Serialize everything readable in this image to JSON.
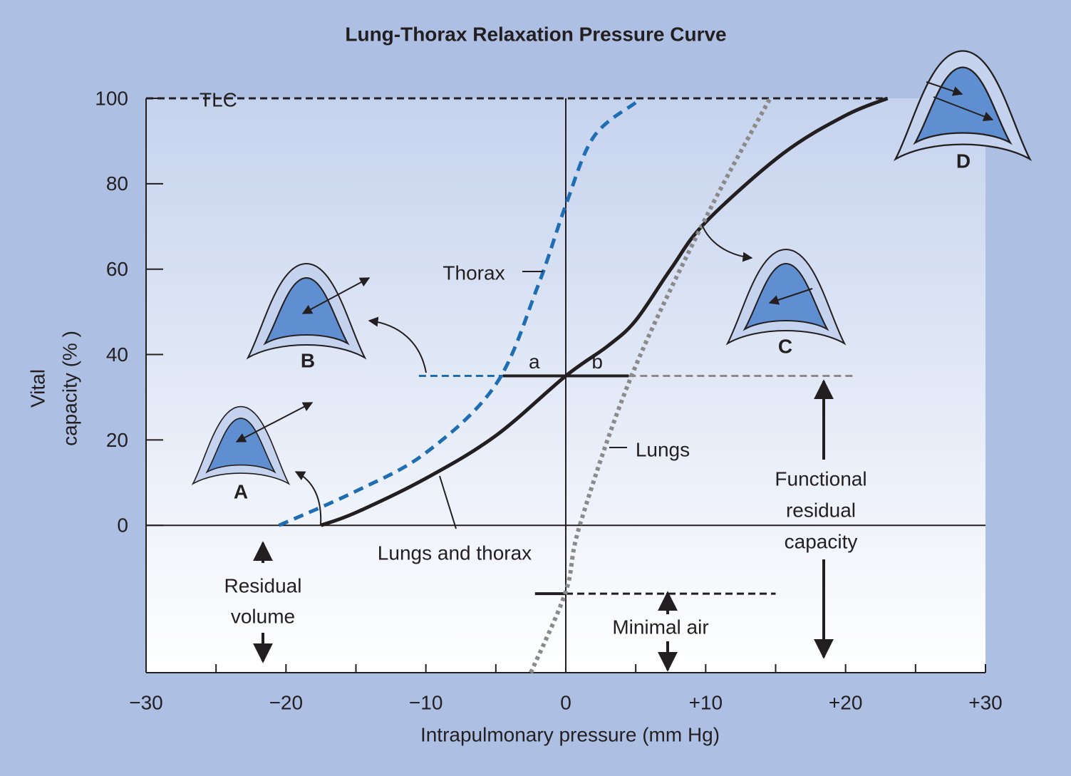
{
  "chart_data": {
    "type": "line",
    "title": "Lung-Thorax Relaxation Pressure Curve",
    "x_label": "Intrapulmonary pressure (mm Hg)",
    "y_label": [
      "Vital",
      "capacity (% )"
    ],
    "xlim": [
      -30,
      30
    ],
    "ylim": [
      -34.5,
      100
    ],
    "xticks": [
      {
        "value": -30,
        "label": "−30"
      },
      {
        "value": -20,
        "label": "−20"
      },
      {
        "value": -10,
        "label": "−10"
      },
      0,
      {
        "value": 10,
        "label": "+10"
      },
      {
        "value": 20,
        "label": "+20"
      },
      {
        "value": 30,
        "label": "+30"
      }
    ],
    "xminorticks": [
      -25,
      -15,
      -5,
      5,
      15,
      25
    ],
    "yticks": [
      0,
      20,
      40,
      60,
      80,
      100
    ],
    "series": [
      {
        "name": "Lungs and thorax",
        "color": "#231f20",
        "style": "solid",
        "x": [
          -17.5,
          -15,
          -10,
          -5,
          0,
          3,
          5,
          7.5,
          10,
          15.5,
          20,
          23
        ],
        "values": [
          0,
          3,
          11,
          21,
          35,
          42,
          48,
          60,
          71,
          87,
          96,
          100
        ]
      },
      {
        "name": "Thorax",
        "color": "#1f6db3",
        "style": "dashed",
        "x": [
          -20.5,
          -15,
          -10,
          -5,
          -2,
          0,
          2,
          5
        ],
        "values": [
          0,
          8,
          17,
          33,
          56,
          75,
          91,
          99
        ]
      },
      {
        "name": "Lungs",
        "color": "#8a8a8a",
        "style": "dotted",
        "x": [
          -2.5,
          0,
          1,
          4.7,
          10,
          14.6
        ],
        "values": [
          -34.5,
          -15.5,
          0,
          35,
          72,
          100
        ]
      }
    ],
    "reference_lines": [
      {
        "label": "TLC",
        "y": 100,
        "segments": [
          {
            "x": [
              -30,
              23
            ],
            "color": "#231f20",
            "style": "dashed"
          }
        ]
      },
      {
        "y": 35,
        "segments": [
          {
            "x": [
              -10.5,
              -4.5
            ],
            "color": "#1f6db3",
            "style": "dashed"
          },
          {
            "x": [
              -4.5,
              0
            ],
            "color": "#231f20",
            "style": "solid",
            "label": "a"
          },
          {
            "x": [
              0,
              4.5
            ],
            "color": "#231f20",
            "style": "solid",
            "label": "b"
          },
          {
            "x": [
              4.5,
              20.5
            ],
            "color": "#8a8a8a",
            "style": "dashed"
          }
        ]
      },
      {
        "y": -16,
        "segments": [
          {
            "x": [
              -2.2,
              0
            ],
            "color": "#231f20",
            "style": "solid"
          },
          {
            "x": [
              0,
              15
            ],
            "color": "#231f20",
            "style": "dashed"
          }
        ]
      }
    ],
    "annotations": {
      "residual_volume": [
        "Residual",
        "volume"
      ],
      "functional_residual_capacity": [
        "Functional",
        "residual",
        "capacity"
      ],
      "minimal_air": "Minimal air",
      "states": [
        "A",
        "B",
        "C",
        "D"
      ]
    }
  }
}
